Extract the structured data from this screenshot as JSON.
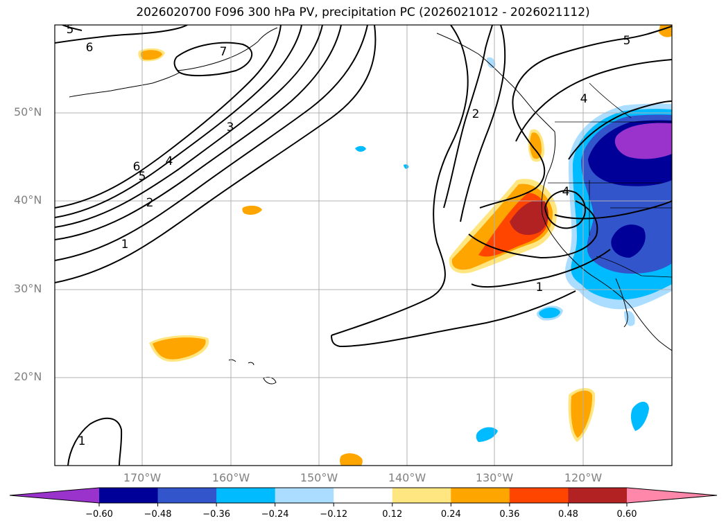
{
  "title": "2026020700 F096 300 hPa PV, precipitation PC (2026021012 - 2026021112)",
  "map": {
    "lat_labels": [
      "50°N",
      "40°N",
      "30°N",
      "20°N"
    ],
    "lon_labels": [
      "170°W",
      "160°W",
      "150°W",
      "140°W",
      "130°W",
      "120°W"
    ],
    "contour_labels": [
      "5",
      "6",
      "7",
      "3",
      "6",
      "5",
      "4",
      "2",
      "1",
      "2",
      "4",
      "4",
      "1",
      "5",
      "1"
    ]
  },
  "colorbar": {
    "ticks": [
      "−0.60",
      "−0.48",
      "−0.36",
      "−0.24",
      "−0.12",
      "0.12",
      "0.24",
      "0.36",
      "0.48",
      "0.60"
    ],
    "colors": [
      "#9933cc",
      "#000099",
      "#3355cc",
      "#00bbff",
      "#aaddff",
      "#ffffff",
      "#ffe680",
      "#ffa500",
      "#ff4500",
      "#b22222",
      "#ff88aa"
    ]
  }
}
